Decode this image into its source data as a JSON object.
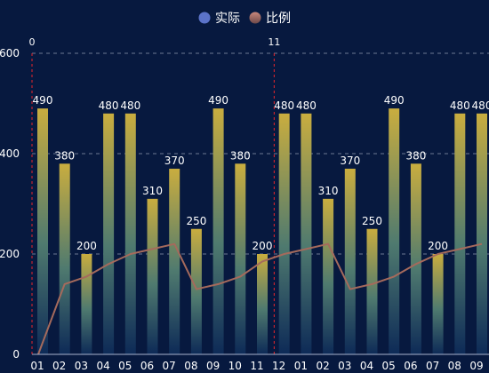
{
  "chart_data": {
    "type": "bar",
    "title": "",
    "xlabel": "",
    "ylabel": "",
    "ylim": [
      0,
      600
    ],
    "y_ticks": [
      0,
      200,
      400,
      600
    ],
    "y_grid": true,
    "legend_position": "top-center",
    "categories": [
      "01",
      "02",
      "03",
      "04",
      "05",
      "06",
      "07",
      "08",
      "09",
      "10",
      "11",
      "12",
      "01",
      "02",
      "03",
      "04",
      "05",
      "06",
      "07",
      "08",
      "09"
    ],
    "series": [
      {
        "name": "实际",
        "type": "bar",
        "values": [
          490,
          380,
          200,
          480,
          480,
          310,
          370,
          250,
          490,
          380,
          200,
          480,
          480,
          310,
          370,
          250,
          490,
          380,
          200,
          480,
          480
        ],
        "color": "#c9a93e",
        "legend_color": "#5b73c9"
      },
      {
        "name": "比例",
        "type": "line",
        "values": [
          0,
          140,
          155,
          180,
          200,
          210,
          220,
          130,
          140,
          155,
          185,
          200,
          210,
          220,
          130,
          140,
          155,
          180,
          200,
          210,
          220
        ],
        "color": "#a56a5c"
      }
    ],
    "mark_lines": [
      {
        "category_index": 0,
        "label": "0",
        "color": "#e8252b"
      },
      {
        "category_index": 11,
        "label": "11",
        "color": "#e8252b"
      }
    ]
  }
}
